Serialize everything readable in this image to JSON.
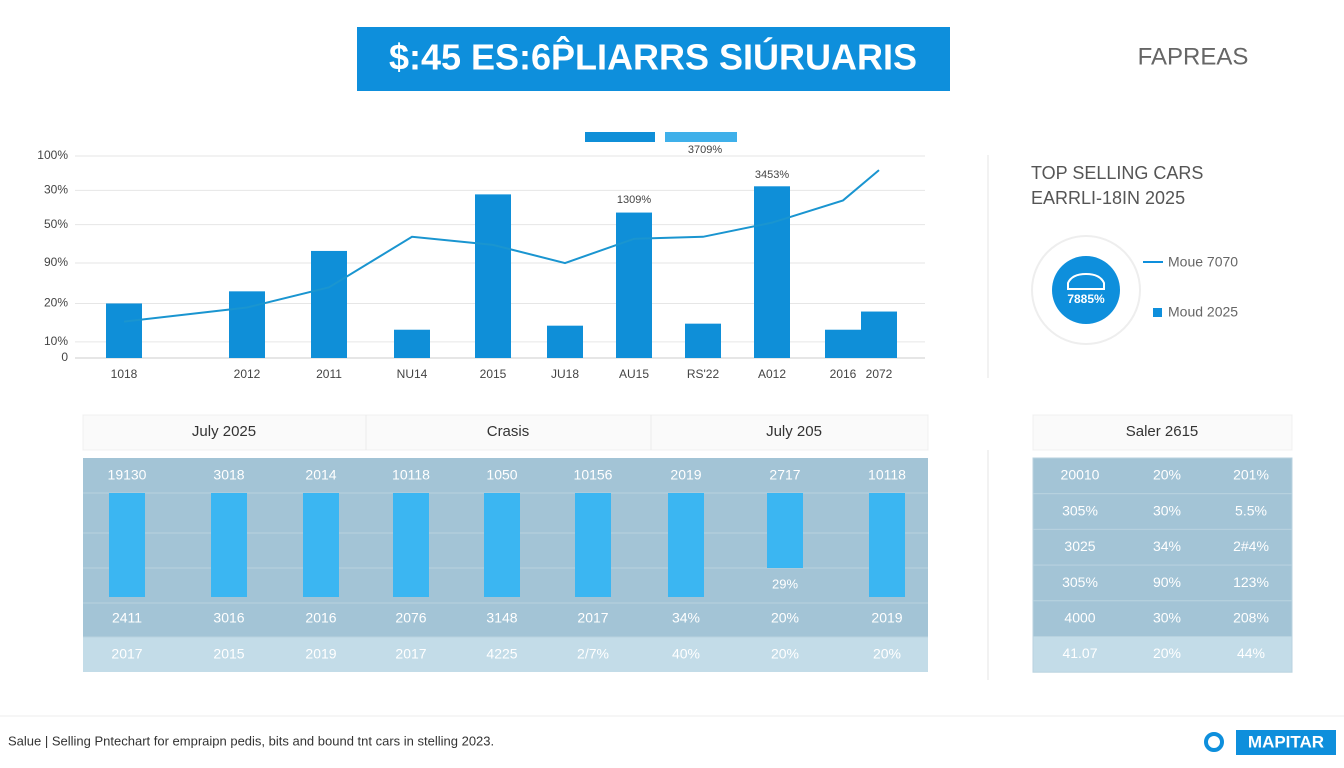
{
  "header": {
    "title": "$:45 ES:6P̂LIARRS SIÚRUARIS",
    "tag": "FAPREAS"
  },
  "chart_data": {
    "type": "bar",
    "categories": [
      "1018",
      "2012",
      "2011",
      "NU14",
      "2015",
      "JU18",
      "AU15",
      "RS'22",
      "A012",
      "2016",
      "2072"
    ],
    "series": [
      {
        "type": "bar",
        "color": "#0f8fd8",
        "values": [
          27,
          33,
          53,
          14,
          81,
          16,
          72,
          17,
          85,
          14,
          23
        ]
      },
      {
        "type": "line",
        "color": "#1a95d0",
        "values": [
          18,
          25,
          35,
          60,
          56,
          47,
          59,
          60,
          67,
          78,
          93
        ]
      }
    ],
    "ylim": [
      0,
      100
    ],
    "yticks": [
      0,
      {
        "value": 8,
        "label": "10%"
      },
      {
        "value": 27,
        "label": "20%"
      },
      {
        "value": 47,
        "label": "90%"
      },
      {
        "value": 66,
        "label": "50%"
      },
      {
        "value": 83,
        "label": "30%"
      },
      {
        "value": 100,
        "label": "100%"
      }
    ],
    "grid": true,
    "annotations": [
      "3709%",
      "1309%",
      "3453%"
    ]
  },
  "side_panel": {
    "title": "TOP SELLING CARS",
    "subtitle": "EARRLI-18IN 2025",
    "badge": "7885%",
    "legend": [
      "Moue 7070",
      "Moud 2025"
    ]
  },
  "table": {
    "headers": [
      "July 2025",
      "Crasis",
      "July 205"
    ],
    "rows": [
      [
        "19130",
        "3018",
        "2014",
        "10118",
        "1050",
        "10156",
        "2019",
        "2717",
        "10118"
      ],
      [
        "2411",
        "3016",
        "2016",
        "2076",
        "3148",
        "2017",
        "34%",
        "20%",
        "2019"
      ],
      [
        "2017",
        "2015",
        "2019",
        "2017",
        "4225",
        "2/7%",
        "40%",
        "20%",
        "20%"
      ]
    ],
    "bar_note": "29%"
  },
  "side_table": {
    "header": "Saler 2615",
    "rows": [
      [
        "20010",
        "20%",
        "201%"
      ],
      [
        "305%",
        "30%",
        "5.5%"
      ],
      [
        "3025",
        "34%",
        "2#4%"
      ],
      [
        "305%",
        "90%",
        "123%"
      ],
      [
        "4000",
        "30%",
        "208%"
      ],
      [
        "41.07",
        "20%",
        "44%"
      ]
    ]
  },
  "footer": {
    "caption": "Salue | Selling Pntechart for empraipn pedis, bits and bound tnt cars in stelling 2023.",
    "brand": "MAPITAR"
  }
}
